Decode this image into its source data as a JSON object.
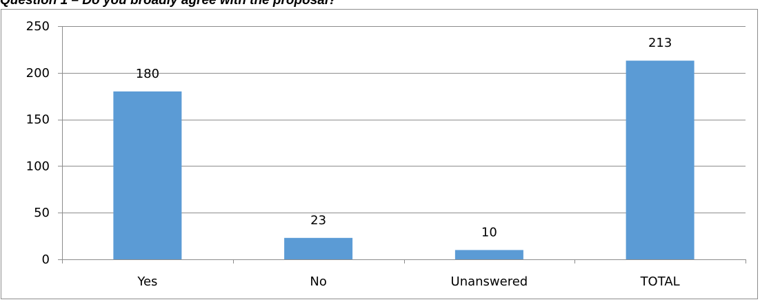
{
  "heading": "Question 1 – Do you broadly agree with the proposal?",
  "colors": {
    "bar": "#5b9bd5",
    "grid": "#8c8c8c",
    "axis": "#8c8c8c",
    "frame": "#8c8c8c"
  },
  "chart_data": {
    "type": "bar",
    "title": "",
    "xlabel": "",
    "ylabel": "",
    "categories": [
      "Yes",
      "No",
      "Unanswered",
      "TOTAL"
    ],
    "values": [
      180,
      23,
      10,
      213
    ],
    "data_labels": [
      "180",
      "23",
      "10",
      "213"
    ],
    "ylim": [
      0,
      250
    ],
    "yticks": [
      0,
      50,
      100,
      150,
      200,
      250
    ],
    "ytick_labels": [
      "0",
      "50",
      "100",
      "150",
      "200",
      "250"
    ],
    "grid": true,
    "legend": "none"
  }
}
